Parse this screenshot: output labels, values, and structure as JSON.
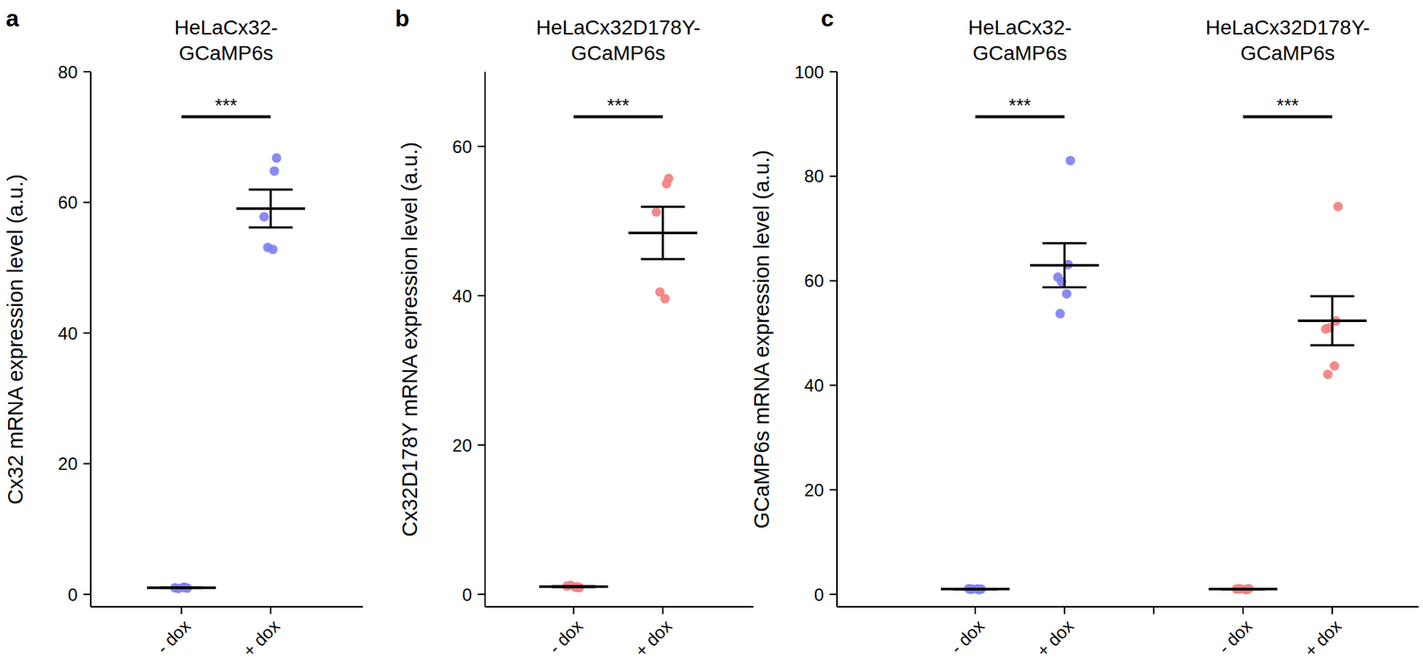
{
  "chart_data": [
    {
      "type": "strip",
      "label": "a",
      "ylabel": "Cx32 mRNA expression level (a.u.)",
      "ylim": [
        0,
        80
      ],
      "yticks": [
        0,
        20,
        40,
        60,
        80
      ],
      "groups": [
        {
          "title": "HeLaCx32-\nGCaMP6s",
          "color": "#7f80f0",
          "categories": [
            "- dox",
            "+ dox"
          ],
          "points": [
            [
              0.95,
              1.05,
              1.0,
              0.9,
              1.1
            ],
            [
              66.8,
              64.8,
              57.8,
              53.1,
              52.8
            ]
          ],
          "mean": [
            1.0,
            59.06
          ],
          "sem": [
            0.04,
            2.91
          ],
          "significance": "***"
        }
      ]
    },
    {
      "type": "strip",
      "label": "b",
      "ylabel": "Cx32D178Y mRNA expression level (a.u.)",
      "ylim": [
        0,
        70
      ],
      "yticks": [
        0,
        20,
        40,
        60
      ],
      "groups": [
        {
          "title": "HeLaCx32D178Y-\nGCaMP6s",
          "color": "#f28080",
          "categories": [
            "- dox",
            "+ dox"
          ],
          "points": [
            [
              0.9,
              1.0,
              1.1,
              1.2,
              0.95
            ],
            [
              55.7,
              55.0,
              51.2,
              40.5,
              39.6
            ]
          ],
          "mean": [
            1.03,
            48.4
          ],
          "sem": [
            0.05,
            3.5
          ],
          "significance": "***"
        }
      ]
    },
    {
      "type": "strip",
      "label": "c",
      "ylabel": "GCaMP6s mRNA expression level (a.u.)",
      "ylim": [
        0,
        100
      ],
      "yticks": [
        0,
        20,
        40,
        60,
        80,
        100
      ],
      "groups": [
        {
          "title": "HeLaCx32-\nGCaMP6s",
          "color": "#7f80f0",
          "categories": [
            "- dox",
            "+ dox"
          ],
          "points": [
            [
              1.0,
              0.9,
              1.1,
              1.0,
              1.05,
              0.95
            ],
            [
              83.0,
              63.1,
              60.7,
              59.8,
              57.5,
              53.7
            ]
          ],
          "mean": [
            1.0,
            62.97
          ],
          "sem": [
            0.03,
            4.21
          ],
          "significance": "***"
        },
        {
          "title": "HeLaCx32D178Y-\nGCaMP6s",
          "color": "#f28080",
          "categories": [
            "- dox",
            "+ dox"
          ],
          "points": [
            [
              1.1,
              0.9,
              1.0,
              1.05,
              0.95,
              1.0
            ],
            [
              74.2,
              52.3,
              50.8,
              51.0,
              43.7,
              42.1
            ]
          ],
          "mean": [
            1.0,
            52.35
          ],
          "sem": [
            0.03,
            4.7
          ],
          "significance": "***"
        }
      ]
    }
  ]
}
